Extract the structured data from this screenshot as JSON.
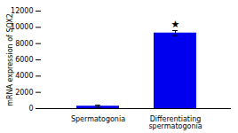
{
  "chart_data": {
    "type": "bar",
    "categories": [
      "Spermatogonia",
      "Differentiating\nspermatogonia"
    ],
    "values": [
      300,
      9300
    ],
    "errors": [
      120,
      300
    ],
    "color": "#0000EE",
    "ylabel": "mRNA expression of SOX2",
    "ylim": [
      0,
      12000
    ],
    "yticks": [
      0,
      2000,
      4000,
      6000,
      8000,
      10000,
      12000
    ],
    "annotations": [
      {
        "text": "★",
        "category": "Differentiating\nspermatogonia"
      }
    ],
    "grid": false
  }
}
